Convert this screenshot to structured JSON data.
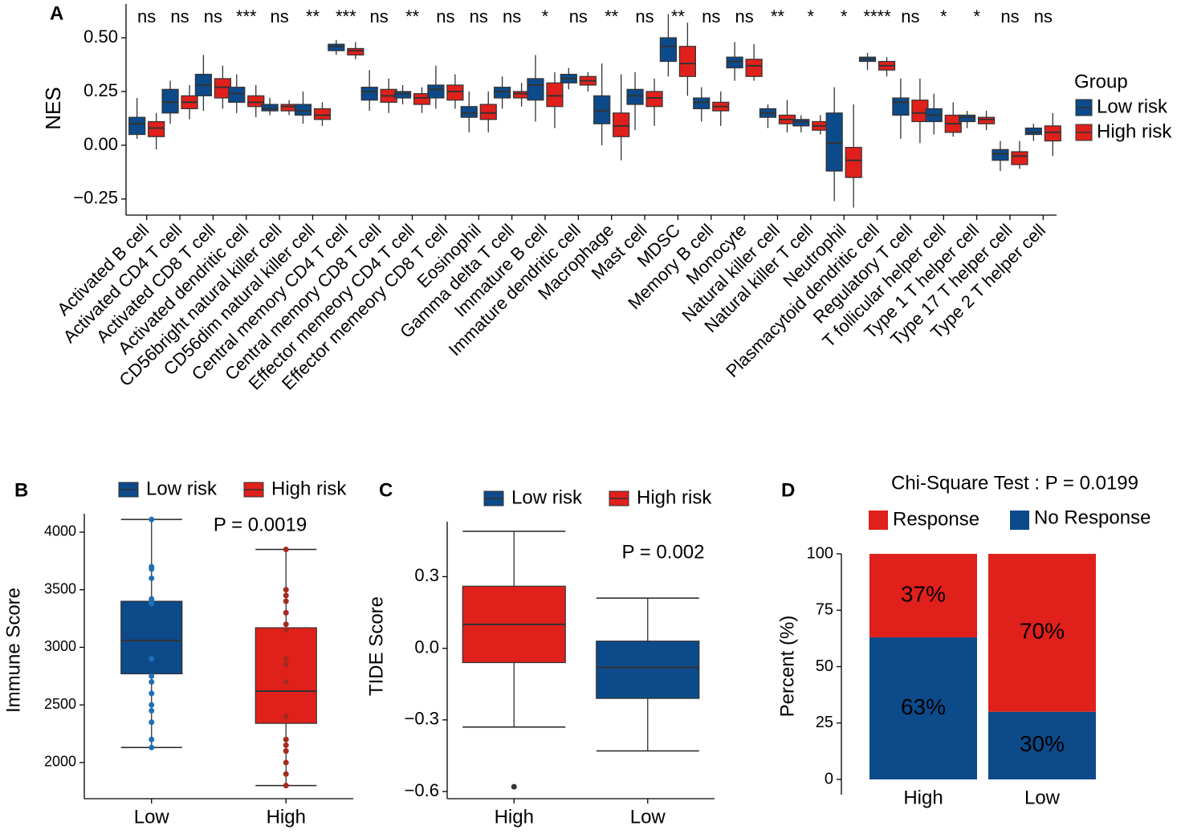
{
  "chart_data": [
    {
      "type": "box",
      "panel": "A",
      "ylabel": "NES",
      "legend_title": "Group",
      "categories": [
        "Activated B cell",
        "Activated CD4 T cell",
        "Activated CD8 T cell",
        "Activated dendritic cell",
        "CD56bright natural killer cell",
        "CD56dim natural killer cell",
        "Central memory CD4 T cell",
        "Central memory CD8 T cell",
        "Effector memeory CD4 T cell",
        "Effector memeory CD8 T cell",
        "Eosinophil",
        "Gamma delta T cell",
        "Immature  B cell",
        "Immature dendritic cell",
        "Macrophage",
        "Mast cell",
        "MDSC",
        "Memory B cell",
        "Monocyte",
        "Natural killer cell",
        "Natural killer T cell",
        "Neutrophil",
        "Plasmacytoid dendritic cell",
        "Regulatory T cell",
        "T follicular helper cell",
        "Type 1 T helper cell",
        "Type 17 T helper cell",
        "Type 2 T helper cell"
      ],
      "significance": [
        "ns",
        "ns",
        "ns",
        "***",
        "ns",
        "**",
        "***",
        "ns",
        "**",
        "ns",
        "ns",
        "ns",
        "*",
        "ns",
        "**",
        "ns",
        "**",
        "ns",
        "ns",
        "**",
        "*",
        "*",
        "****",
        "ns",
        "*",
        "*",
        "ns",
        "ns"
      ],
      "series": [
        {
          "name": "Low risk",
          "color": "#0d4a8a",
          "whisker_low": [
            0.03,
            0.1,
            0.16,
            0.15,
            0.14,
            0.1,
            0.42,
            0.16,
            0.19,
            0.17,
            0.06,
            0.17,
            0.11,
            0.26,
            0.0,
            0.07,
            0.32,
            0.11,
            0.3,
            0.08,
            0.06,
            -0.26,
            0.35,
            0.03,
            0.05,
            0.08,
            -0.12,
            0.02
          ],
          "q1": [
            0.05,
            0.15,
            0.23,
            0.2,
            0.16,
            0.14,
            0.44,
            0.21,
            0.22,
            0.22,
            0.13,
            0.22,
            0.21,
            0.29,
            0.1,
            0.19,
            0.39,
            0.17,
            0.36,
            0.13,
            0.09,
            -0.12,
            0.39,
            0.14,
            0.11,
            0.11,
            -0.07,
            0.05
          ],
          "median": [
            0.1,
            0.2,
            0.28,
            0.24,
            0.17,
            0.16,
            0.46,
            0.25,
            0.24,
            0.26,
            0.15,
            0.25,
            0.28,
            0.31,
            0.16,
            0.23,
            0.46,
            0.2,
            0.39,
            0.15,
            0.11,
            0.01,
            0.4,
            0.2,
            0.14,
            0.13,
            -0.04,
            0.06
          ],
          "q3": [
            0.13,
            0.26,
            0.33,
            0.27,
            0.19,
            0.19,
            0.47,
            0.27,
            0.25,
            0.28,
            0.18,
            0.27,
            0.31,
            0.33,
            0.23,
            0.26,
            0.5,
            0.22,
            0.41,
            0.17,
            0.12,
            0.15,
            0.41,
            0.22,
            0.17,
            0.14,
            -0.02,
            0.08
          ],
          "whisker_high": [
            0.22,
            0.3,
            0.42,
            0.33,
            0.22,
            0.25,
            0.49,
            0.35,
            0.28,
            0.37,
            0.25,
            0.32,
            0.42,
            0.36,
            0.38,
            0.34,
            0.61,
            0.27,
            0.48,
            0.19,
            0.14,
            0.27,
            0.43,
            0.31,
            0.24,
            0.16,
            0.02,
            0.1
          ]
        },
        {
          "name": "High risk",
          "color": "#e0201b",
          "whisker_low": [
            -0.02,
            0.12,
            0.17,
            0.13,
            0.14,
            0.09,
            0.4,
            0.15,
            0.15,
            0.17,
            0.06,
            0.18,
            0.08,
            0.25,
            -0.07,
            0.09,
            0.23,
            0.09,
            0.3,
            0.06,
            0.05,
            -0.29,
            0.32,
            0.01,
            0.04,
            0.07,
            -0.11,
            -0.05
          ],
          "q1": [
            0.04,
            0.17,
            0.22,
            0.18,
            0.16,
            0.12,
            0.42,
            0.2,
            0.19,
            0.21,
            0.12,
            0.22,
            0.18,
            0.28,
            0.04,
            0.18,
            0.32,
            0.16,
            0.32,
            0.1,
            0.07,
            -0.15,
            0.35,
            0.11,
            0.06,
            0.1,
            -0.09,
            0.02
          ],
          "median": [
            0.08,
            0.2,
            0.27,
            0.2,
            0.18,
            0.14,
            0.44,
            0.23,
            0.22,
            0.25,
            0.15,
            0.24,
            0.23,
            0.3,
            0.09,
            0.22,
            0.38,
            0.18,
            0.37,
            0.12,
            0.09,
            -0.07,
            0.37,
            0.15,
            0.1,
            0.12,
            -0.05,
            0.06
          ],
          "q3": [
            0.11,
            0.23,
            0.31,
            0.23,
            0.19,
            0.17,
            0.45,
            0.26,
            0.24,
            0.28,
            0.19,
            0.25,
            0.29,
            0.32,
            0.15,
            0.25,
            0.46,
            0.2,
            0.4,
            0.14,
            0.11,
            -0.01,
            0.39,
            0.21,
            0.14,
            0.13,
            -0.03,
            0.09
          ],
          "whisker_high": [
            0.15,
            0.28,
            0.37,
            0.28,
            0.21,
            0.2,
            0.48,
            0.31,
            0.27,
            0.33,
            0.25,
            0.29,
            0.34,
            0.34,
            0.33,
            0.31,
            0.57,
            0.25,
            0.47,
            0.21,
            0.14,
            0.19,
            0.41,
            0.31,
            0.2,
            0.16,
            0.02,
            0.15
          ]
        }
      ],
      "ylim": [
        -0.325,
        0.657
      ],
      "yticks": [
        {
          "value": -0.25,
          "label": "−0.25"
        },
        {
          "value": 0,
          "label": "0.00"
        },
        {
          "value": 0.25,
          "label": "0.25"
        },
        {
          "value": 0.5,
          "label": "0.50"
        }
      ]
    },
    {
      "type": "box",
      "panel": "B",
      "ylabel": "Immune Score",
      "annotation": "P = 0.0019",
      "categories": [
        "Low",
        "High"
      ],
      "series": [
        {
          "name": "Low risk",
          "color": "#0d4a8a",
          "whisker_low": [
            2130,
            null
          ],
          "q1": [
            2770,
            null
          ],
          "median": [
            3060,
            null
          ],
          "q3": [
            3400,
            null
          ],
          "whisker_high": [
            4110,
            null
          ],
          "points": [
            [
              4110,
              3700,
              3680,
              3600,
              3420,
              3400,
              3380,
              2900,
              2750,
              2700,
              2600,
              2500,
              2450,
              2350,
              2200,
              2130
            ],
            null
          ]
        },
        {
          "name": "High risk",
          "color": "#e0201b",
          "whisker_low": [
            null,
            1800
          ],
          "q1": [
            null,
            2340
          ],
          "median": [
            null,
            2620
          ],
          "q3": [
            null,
            3170
          ],
          "whisker_high": [
            null,
            3850
          ],
          "points": [
            null,
            [
              3850,
              3500,
              3450,
              3400,
              3300,
              3200,
              3150,
              2900,
              2850,
              2700,
              2400,
              2200,
              2150,
              2100,
              2000,
              1900,
              1800
            ]
          ]
        }
      ],
      "ylim": [
        1686,
        4160
      ],
      "yticks": [
        2000,
        2500,
        3000,
        3500,
        4000
      ]
    },
    {
      "type": "box",
      "panel": "C",
      "ylabel": "TIDE Score",
      "annotation": "P = 0.002",
      "categories": [
        "High",
        "Low"
      ],
      "series": [
        {
          "name": "Low risk",
          "color": "#0d4a8a",
          "whisker_low": [
            null,
            -0.43
          ],
          "q1": [
            null,
            -0.21
          ],
          "median": [
            null,
            -0.08
          ],
          "q3": [
            null,
            0.03
          ],
          "whisker_high": [
            null,
            0.21
          ]
        },
        {
          "name": "High risk",
          "color": "#e0201b",
          "whisker_low": [
            -0.33,
            null
          ],
          "q1": [
            -0.06,
            null
          ],
          "median": [
            0.1,
            null
          ],
          "q3": [
            0.26,
            null
          ],
          "whisker_high": [
            0.49,
            null
          ],
          "outliers": [
            [
              -0.58
            ],
            null
          ]
        }
      ],
      "ylim": [
        -0.63,
        0.53
      ],
      "yticks": [
        {
          "value": -0.6,
          "label": "−0.6"
        },
        {
          "value": -0.3,
          "label": "−0.3"
        },
        {
          "value": 0,
          "label": "0.0"
        },
        0.3
      ]
    },
    {
      "type": "stacked_bar",
      "panel": "D",
      "ylabel": "Percent (%)",
      "subtitle": "Chi-Square Test : P = 0.0199",
      "categories": [
        "High",
        "Low"
      ],
      "series": [
        {
          "name": "No Response",
          "color": "#0d4a8a",
          "values": [
            63,
            30
          ],
          "value_labels": [
            "63%",
            "30%"
          ]
        },
        {
          "name": "Response",
          "color": "#e0201b",
          "values": [
            37,
            70
          ],
          "value_labels": [
            "37%",
            "70%"
          ]
        }
      ],
      "ylim": [
        0,
        100
      ],
      "yticks": [
        0,
        25,
        50,
        75,
        100
      ]
    }
  ]
}
